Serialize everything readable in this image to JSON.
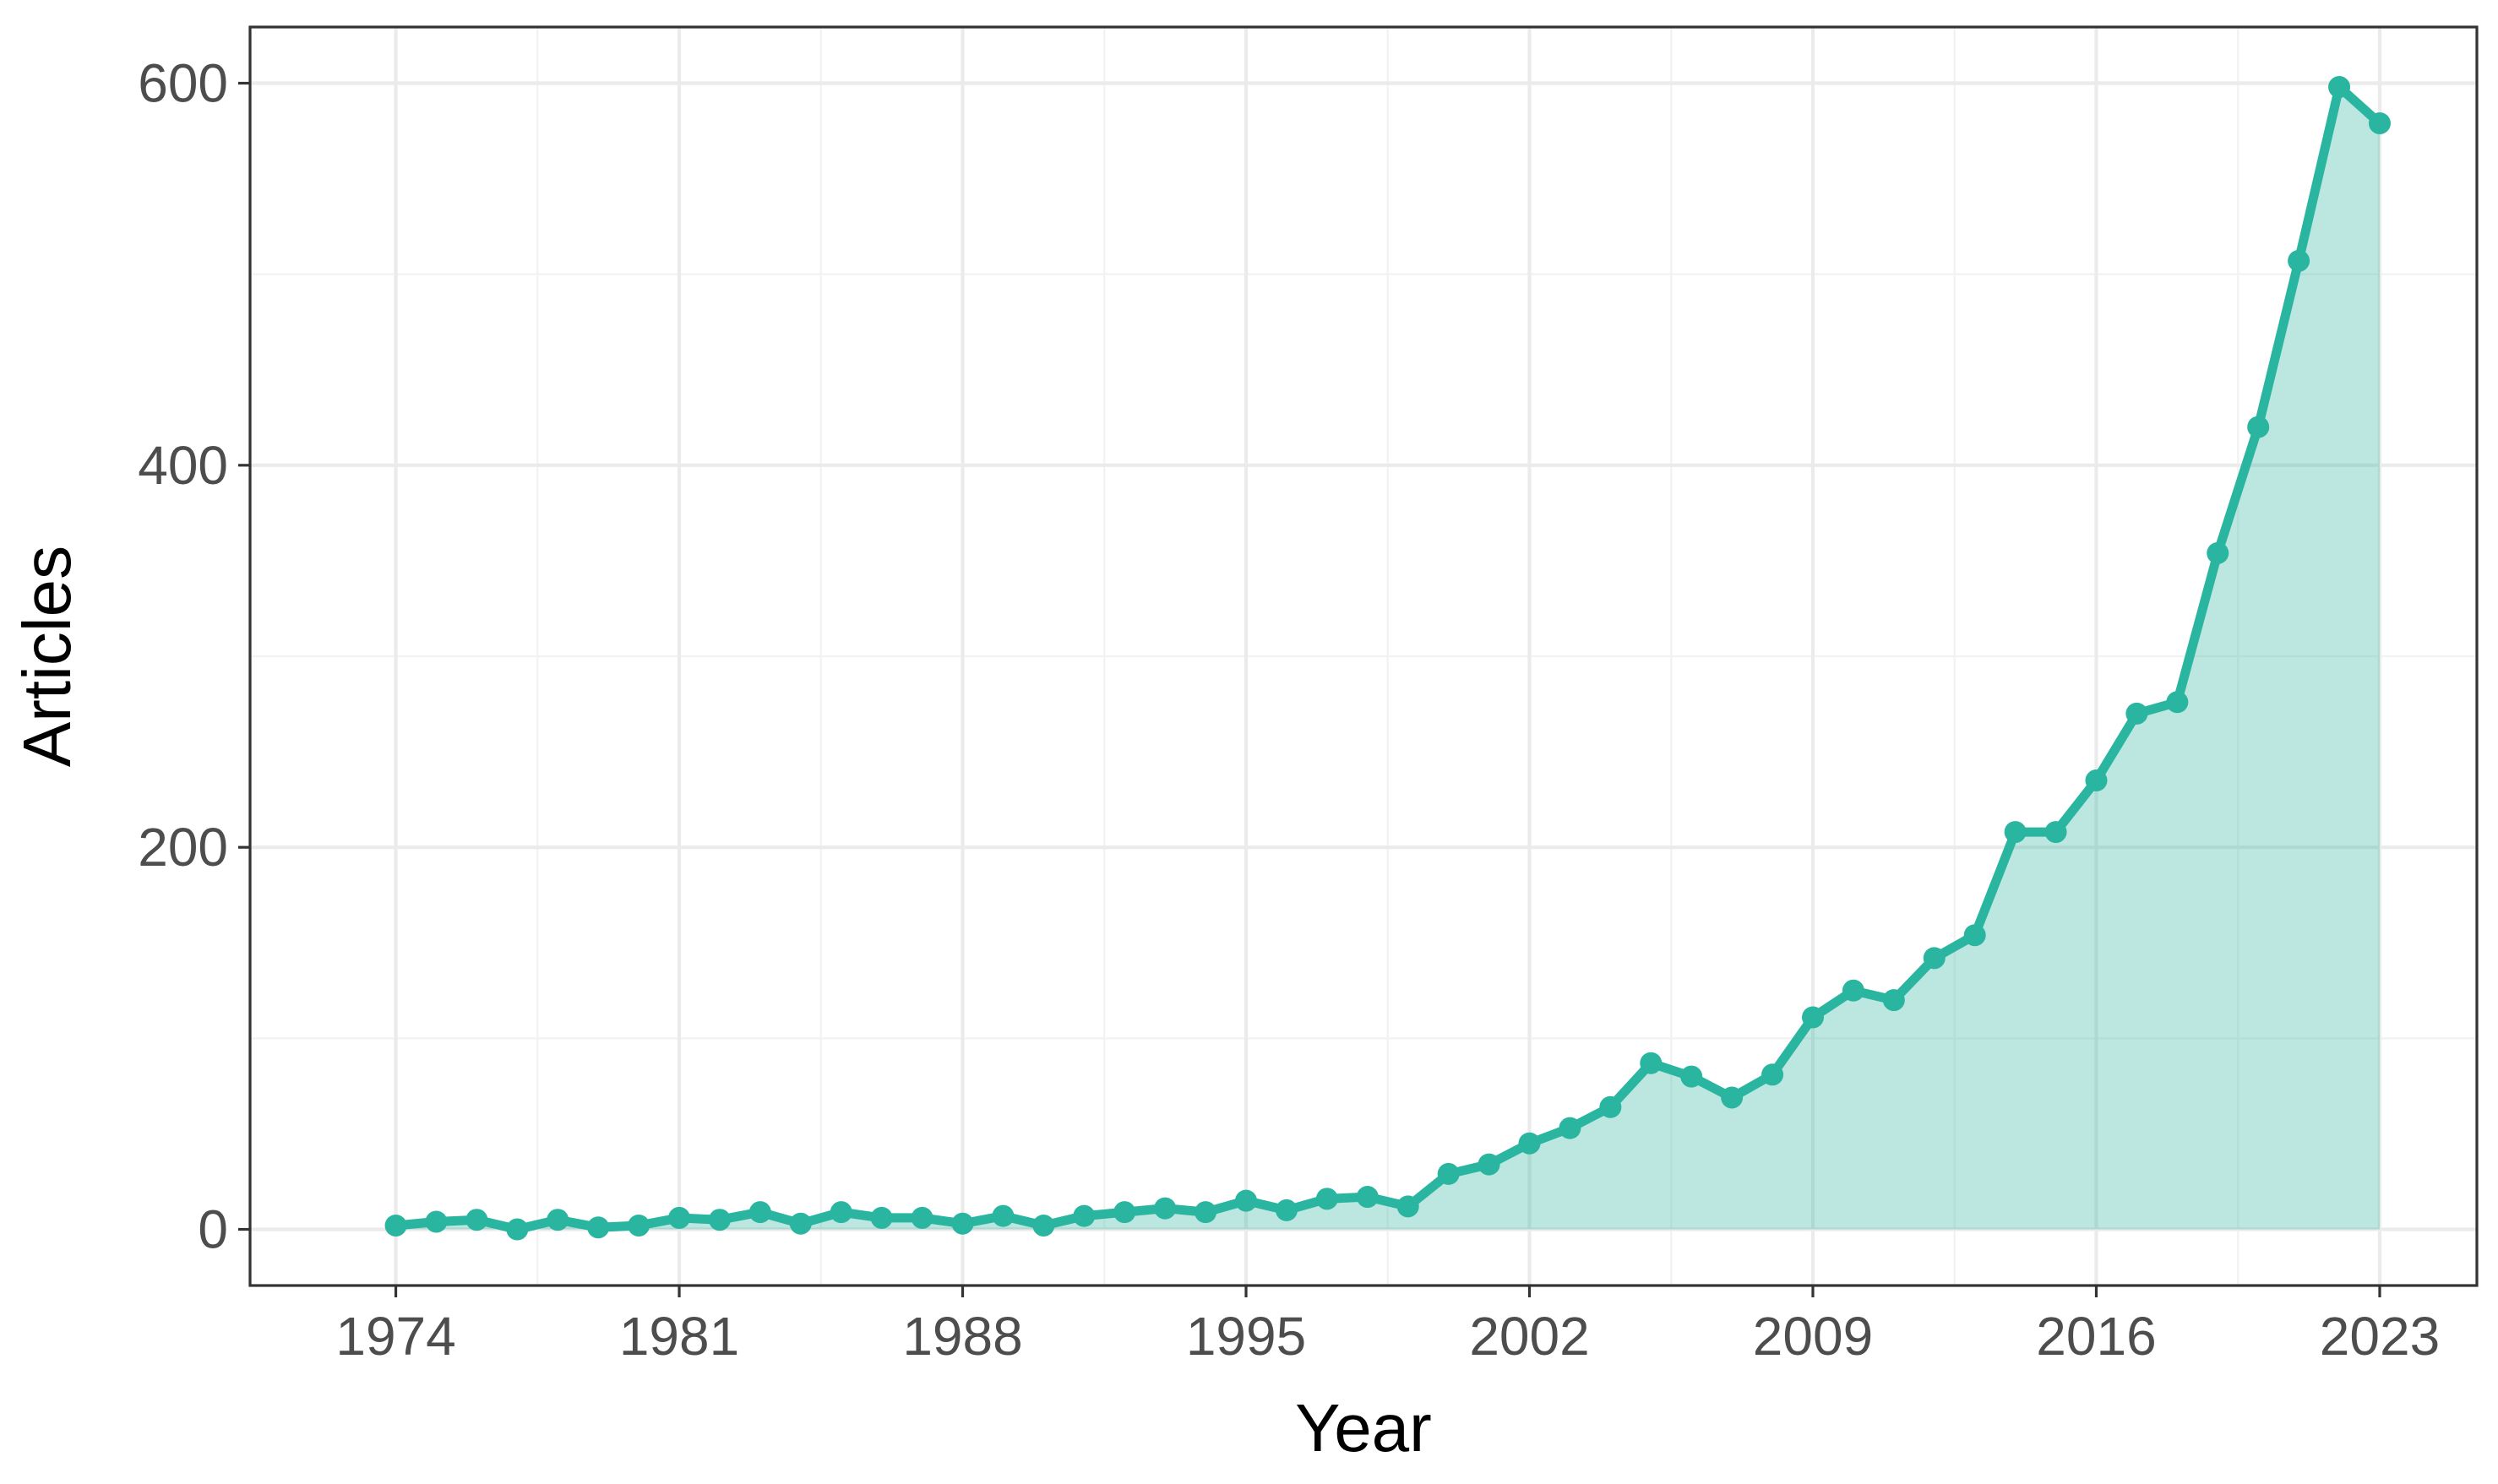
{
  "chart_data": {
    "type": "area",
    "title": "",
    "xlabel": "Year",
    "ylabel": "Articles",
    "xlim": [
      1970.4,
      2025.4
    ],
    "ylim": [
      -29.4,
      629.4
    ],
    "x_ticks": [
      1974,
      1981,
      1988,
      1995,
      2002,
      2009,
      2016,
      2023
    ],
    "y_ticks": [
      0,
      200,
      400,
      600
    ],
    "grid": true,
    "legend": "none",
    "colors": {
      "series": "#2ab5a0",
      "fill": "#2ab5a0",
      "grid": "#ebebeb",
      "border": "#333333",
      "tick_label": "#4d4d4d"
    },
    "series": [
      {
        "x": [
          1974,
          1975,
          1976,
          1977,
          1978,
          1979,
          1980,
          1981,
          1982,
          1983,
          1984,
          1985,
          1986,
          1987,
          1988,
          1989,
          1990,
          1991,
          1992,
          1993,
          1994,
          1995,
          1996,
          1997,
          1998,
          1999,
          2000,
          2001,
          2002,
          2003,
          2004,
          2005,
          2006,
          2007,
          2008,
          2009,
          2010,
          2011,
          2012,
          2013,
          2014,
          2015,
          2016,
          2017,
          2018,
          2019,
          2020,
          2021,
          2022,
          2023
        ],
        "values": [
          2,
          4,
          5,
          0,
          5,
          1,
          2,
          6,
          5,
          9,
          3,
          9,
          6,
          6,
          3,
          7,
          2,
          7,
          9,
          11,
          9,
          15,
          10,
          16,
          17,
          12,
          29,
          34,
          45,
          53,
          64,
          87,
          80,
          69,
          81,
          111,
          125,
          120,
          142,
          154,
          208,
          208,
          235,
          270,
          276,
          354,
          420,
          507,
          598,
          579
        ]
      }
    ]
  }
}
